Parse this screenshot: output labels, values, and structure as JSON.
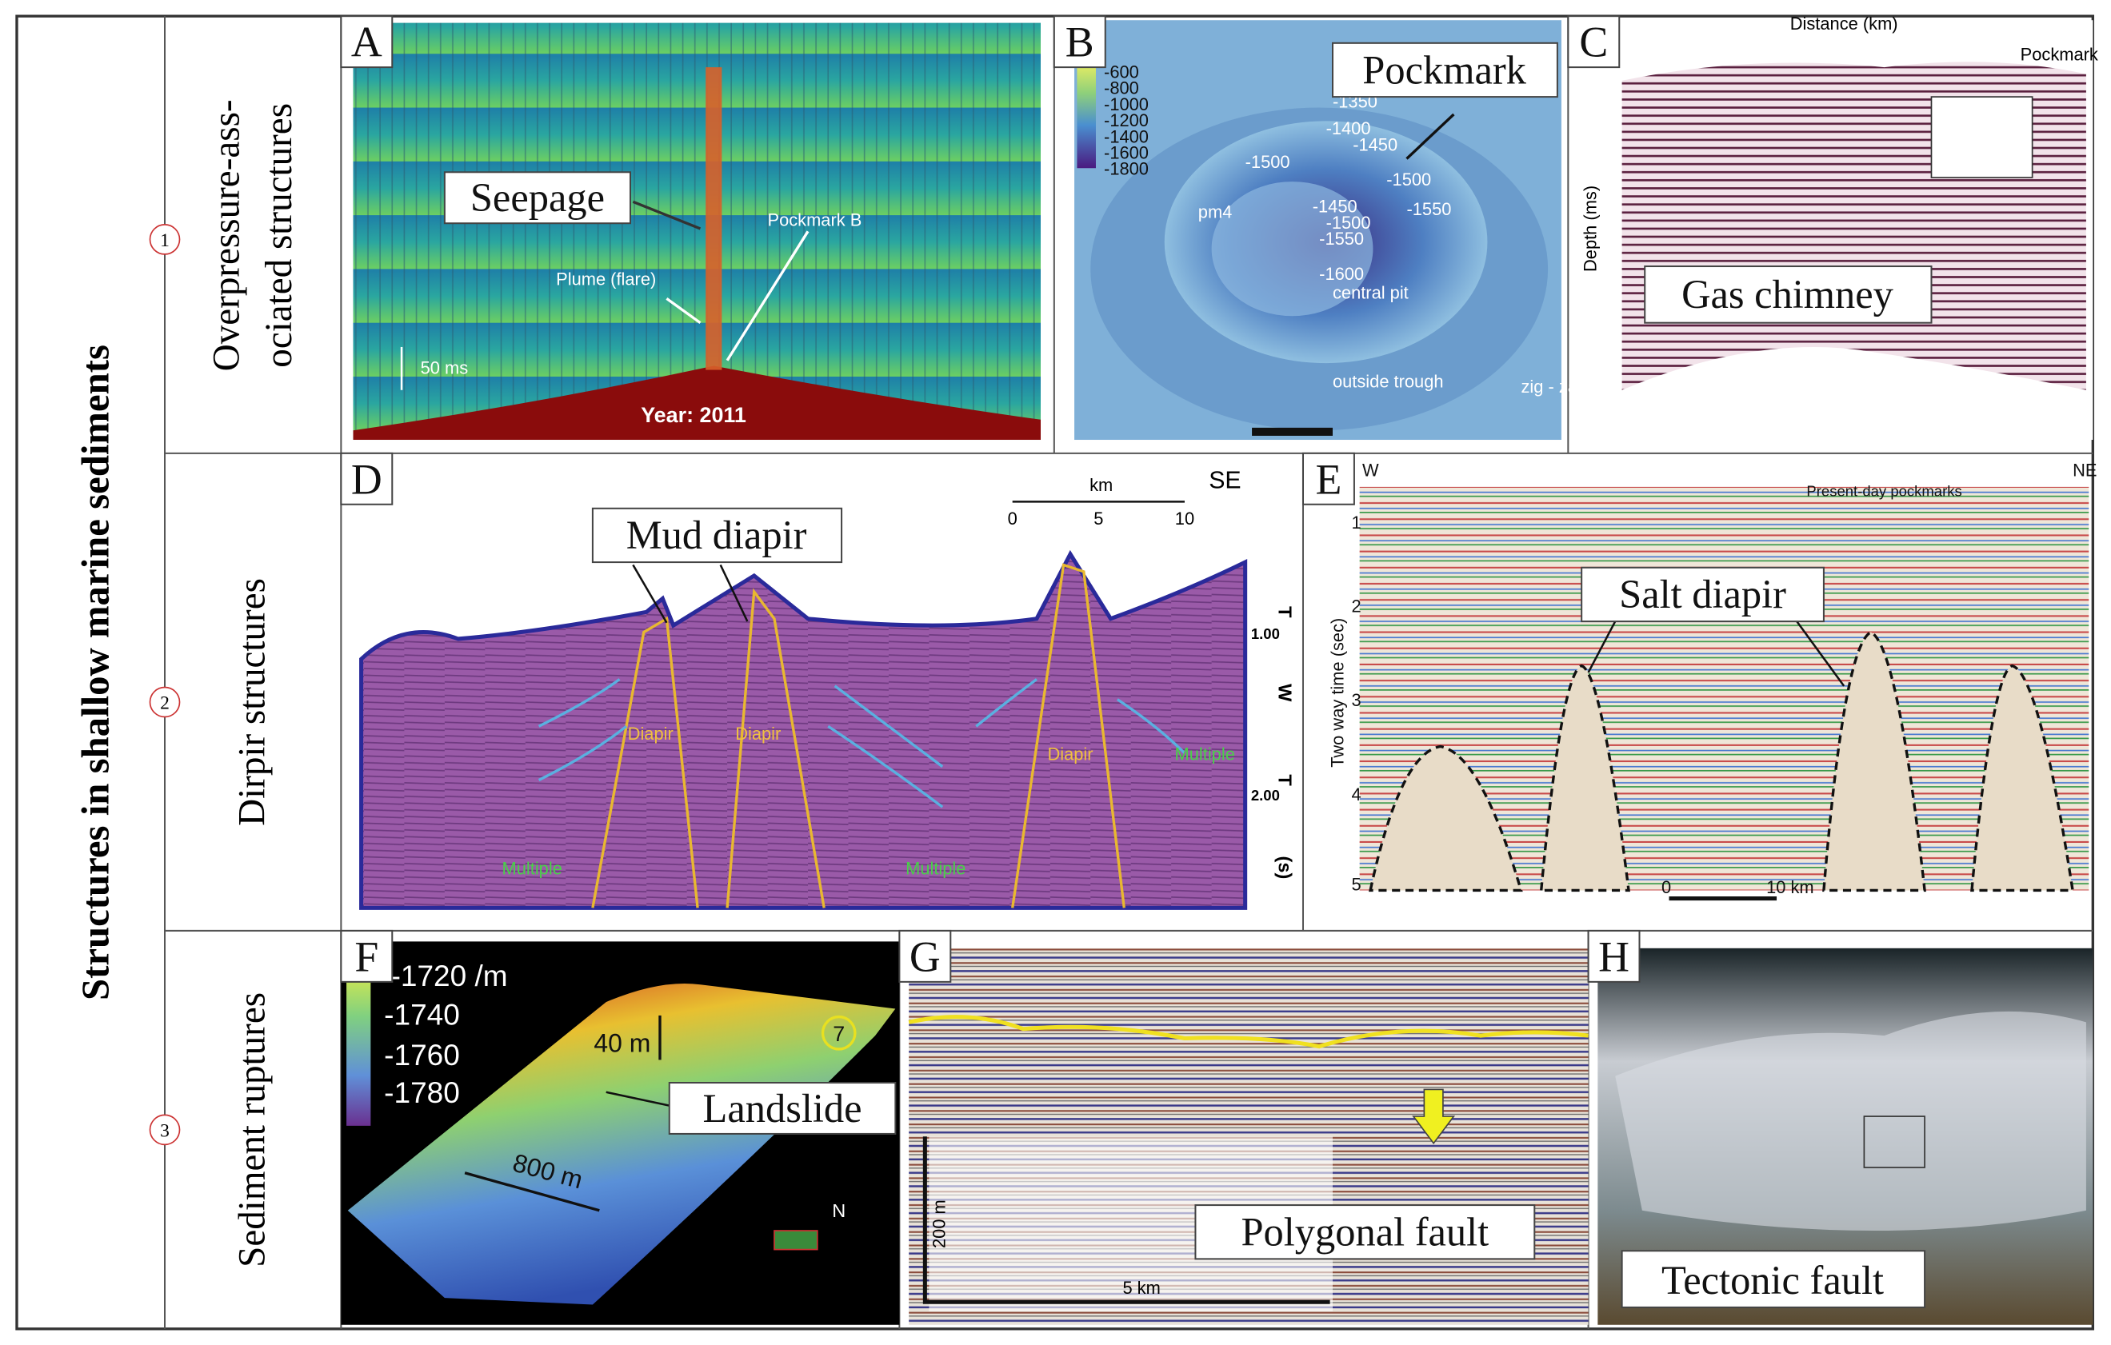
{
  "title": "Structures in shallow marine sediments",
  "rows": [
    {
      "number": "1",
      "label": [
        "Overpressure-ass-",
        "ociated structures"
      ]
    },
    {
      "number": "2",
      "label": [
        "Dirpir structures"
      ]
    },
    {
      "number": "3",
      "label": [
        "Sediment ruptures"
      ]
    }
  ],
  "panels": [
    {
      "letter": "A",
      "callout": "Seepage",
      "labels": [
        "Plume (flare)",
        "Pockmark B",
        "50 ms",
        "Year: 2011"
      ]
    },
    {
      "letter": "B",
      "callout": "Pockmark",
      "labels": [
        "-600",
        "-800",
        "-1000",
        "-1200",
        "-1400",
        "-1600",
        "-1800",
        "-1350",
        "-1400",
        "-1450",
        "-1500",
        "-1500",
        "-1550",
        "-1450",
        "-1500",
        "-1550",
        "-1600",
        "central pit",
        "outside trough",
        "pm4",
        "zig - zag"
      ]
    },
    {
      "letter": "C",
      "callout": "Gas chimney",
      "labels": [
        "Distance (km)",
        "Pockmark",
        "Depth (ms)"
      ]
    },
    {
      "letter": "D",
      "callout": "Mud diapir",
      "labels": [
        "km",
        "SE",
        "0",
        "5",
        "10",
        "Diapir",
        "Diapir",
        "Diapir",
        "Multiple",
        "Multiple",
        "Multiple",
        "T",
        "W",
        "T",
        "1.00",
        "2.00",
        "(s)"
      ]
    },
    {
      "letter": "E",
      "callout": "Salt diapir",
      "labels": [
        "W",
        "NE",
        "Present-day pockmarks",
        "Two way time (sec)",
        "1",
        "2",
        "3",
        "4",
        "5",
        "0",
        "10 km"
      ]
    },
    {
      "letter": "F",
      "callout": "Landslide",
      "labels": [
        "-1720 /m",
        "-1740",
        "-1760",
        "-1780",
        "40 m",
        "7",
        "800 m",
        "N"
      ]
    },
    {
      "letter": "G",
      "callout": "Polygonal fault",
      "labels": [
        "200 m",
        "5 km"
      ]
    },
    {
      "letter": "H",
      "callout": "Tectonic fault",
      "labels": []
    }
  ]
}
